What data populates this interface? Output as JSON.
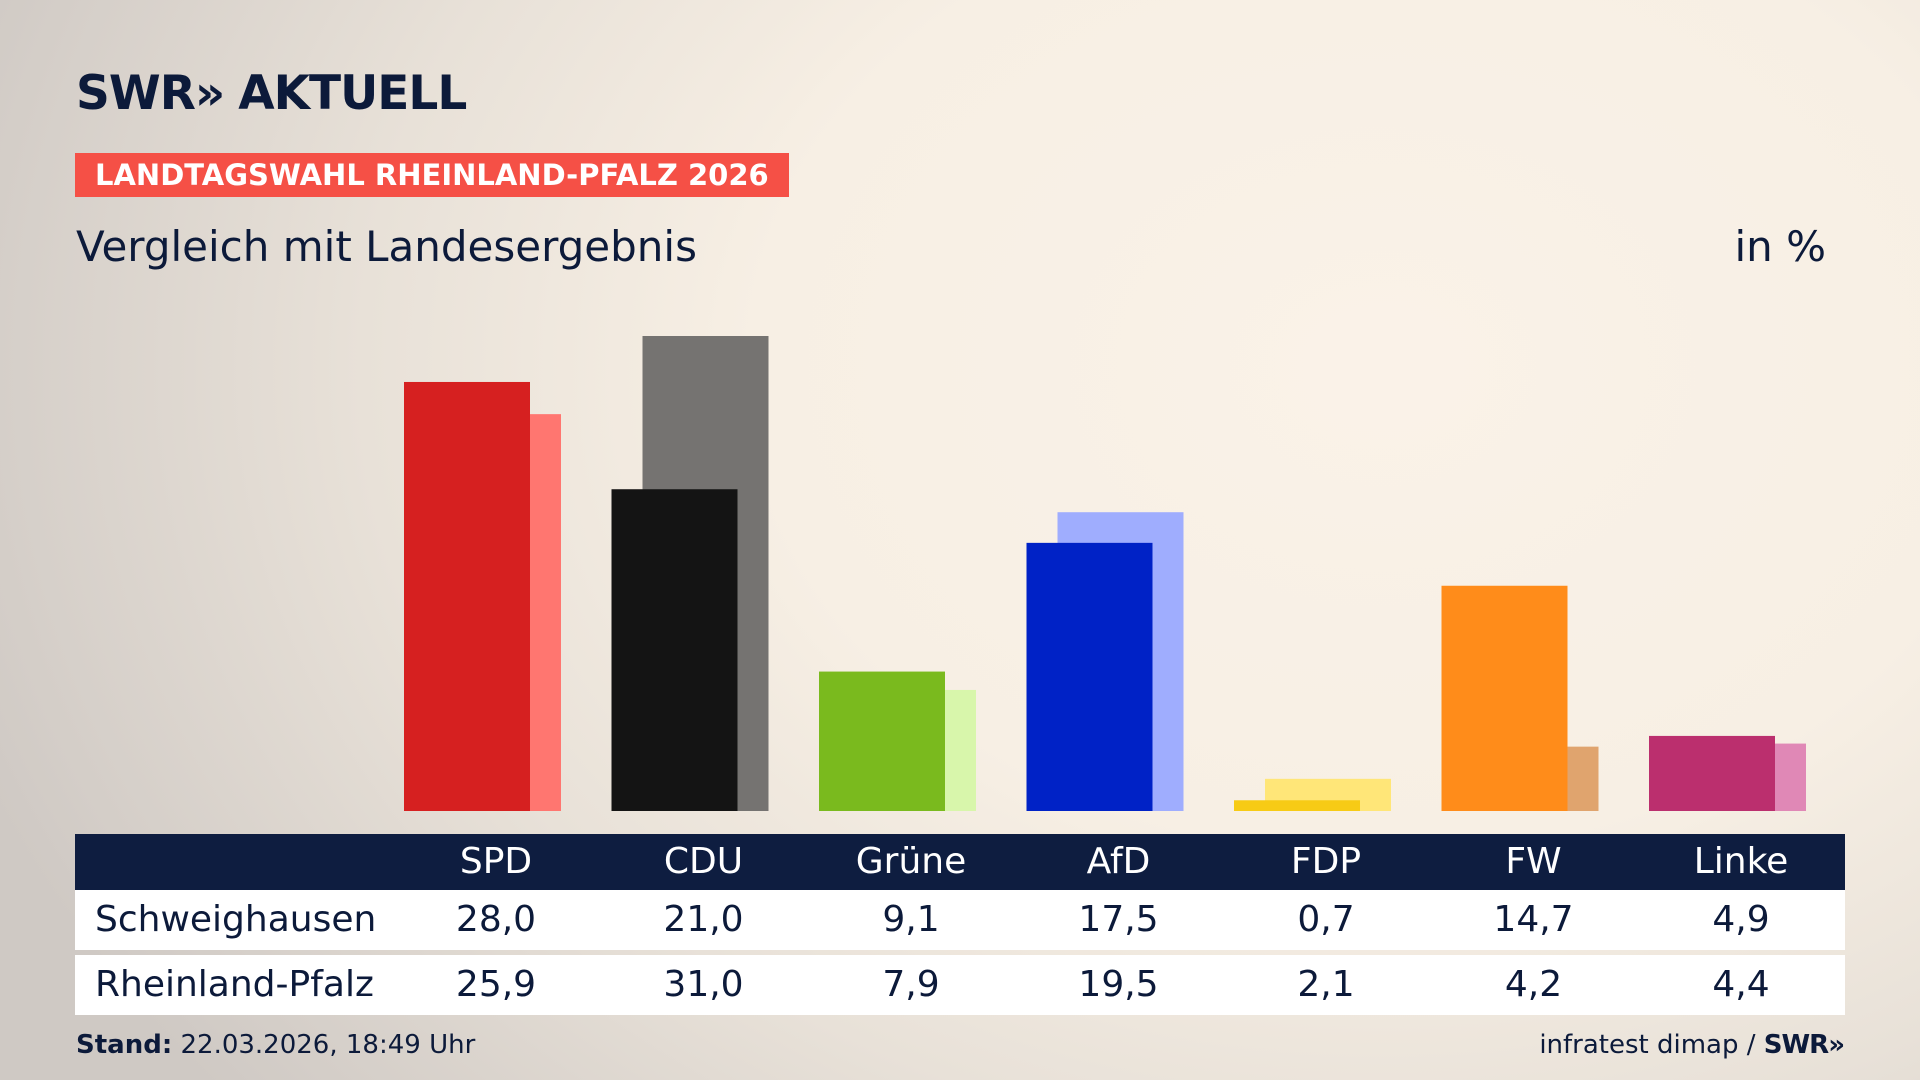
{
  "header": {
    "logo_brand": "SWR»",
    "logo_name": "AKTUELL",
    "badge": "LANDTAGSWAHL RHEINLAND-PFALZ 2026",
    "subtitle": "Vergleich mit Landesergebnis",
    "unit": "in %"
  },
  "chart_data": {
    "type": "bar",
    "categories": [
      "SPD",
      "CDU",
      "Grüne",
      "AfD",
      "FDP",
      "FW",
      "Linke"
    ],
    "series": [
      {
        "name": "Schweighausen",
        "values": [
          28.0,
          21.0,
          9.1,
          17.5,
          0.7,
          14.7,
          4.9
        ],
        "labels": [
          "28,0",
          "21,0",
          "9,1",
          "17,5",
          "0,7",
          "14,7",
          "4,9"
        ]
      },
      {
        "name": "Rheinland-Pfalz",
        "values": [
          25.9,
          31.0,
          7.9,
          19.5,
          2.1,
          4.2,
          4.4
        ],
        "labels": [
          "25,9",
          "31,0",
          "7,9",
          "19,5",
          "2,1",
          "4,2",
          "4,4"
        ]
      }
    ],
    "colors_primary": [
      "#d62020",
      "#141414",
      "#7aba1e",
      "#0022c6",
      "#f7cb15",
      "#ff8c1a",
      "#bb2f6e"
    ],
    "colors_secondary": [
      "#ff7670",
      "#757371",
      "#d8f6ab",
      "#9fadfe",
      "#ffe678",
      "#e0a46e",
      "#e088b6"
    ],
    "ylim": [
      0,
      31
    ]
  },
  "table": {
    "rows": [
      {
        "label": "Schweighausen"
      },
      {
        "label": "Rheinland-Pfalz"
      }
    ]
  },
  "footer": {
    "stand_label": "Stand:",
    "stand_value": " 22.03.2026, 18:49 Uhr",
    "source": "infratest dimap / ",
    "source_brand": "SWR»"
  }
}
